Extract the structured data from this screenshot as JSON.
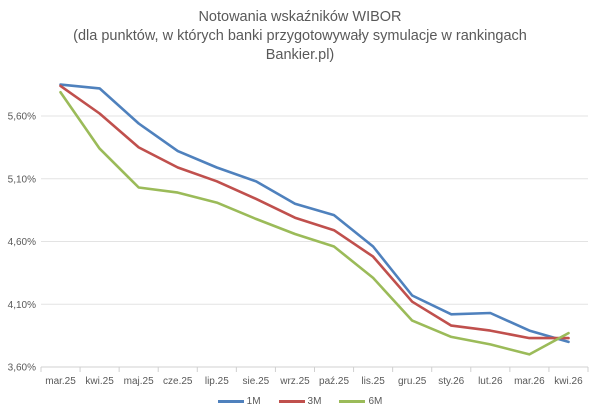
{
  "chart_data": {
    "type": "line",
    "title_lines": [
      "Notowania wskaźników WIBOR",
      "(dla punktów, w których banki przygotowywały symulacje w rankingach",
      "Bankier.pl)"
    ],
    "categories": [
      "mar.25",
      "kwi.25",
      "maj.25",
      "cze.25",
      "lip.25",
      "sie.25",
      "wrz.25",
      "paź.25",
      "lis.25",
      "gru.25",
      "sty.26",
      "lut.26",
      "mar.26",
      "kwi.26"
    ],
    "y_ticks": [
      3.6,
      4.1,
      4.6,
      5.1,
      5.6
    ],
    "y_tick_labels": [
      "3,60%",
      "4,10%",
      "4,60%",
      "5,10%",
      "5,60%"
    ],
    "ylim": [
      3.6,
      5.6
    ],
    "grid": "horizontal",
    "legend_position": "bottom",
    "series": [
      {
        "name": "1M",
        "color": "#4f81bd",
        "values": [
          5.85,
          5.82,
          5.54,
          5.32,
          5.19,
          5.08,
          4.9,
          4.81,
          4.56,
          4.17,
          4.02,
          4.03,
          3.89,
          3.8
        ]
      },
      {
        "name": "3M",
        "color": "#c0504d",
        "values": [
          5.84,
          5.62,
          5.35,
          5.19,
          5.08,
          4.94,
          4.79,
          4.69,
          4.48,
          4.12,
          3.93,
          3.89,
          3.83,
          3.83
        ]
      },
      {
        "name": "6M",
        "color": "#9bbb59",
        "values": [
          5.79,
          5.34,
          5.03,
          4.99,
          4.91,
          4.78,
          4.66,
          4.56,
          4.31,
          3.97,
          3.84,
          3.78,
          3.7,
          3.87
        ]
      }
    ]
  }
}
